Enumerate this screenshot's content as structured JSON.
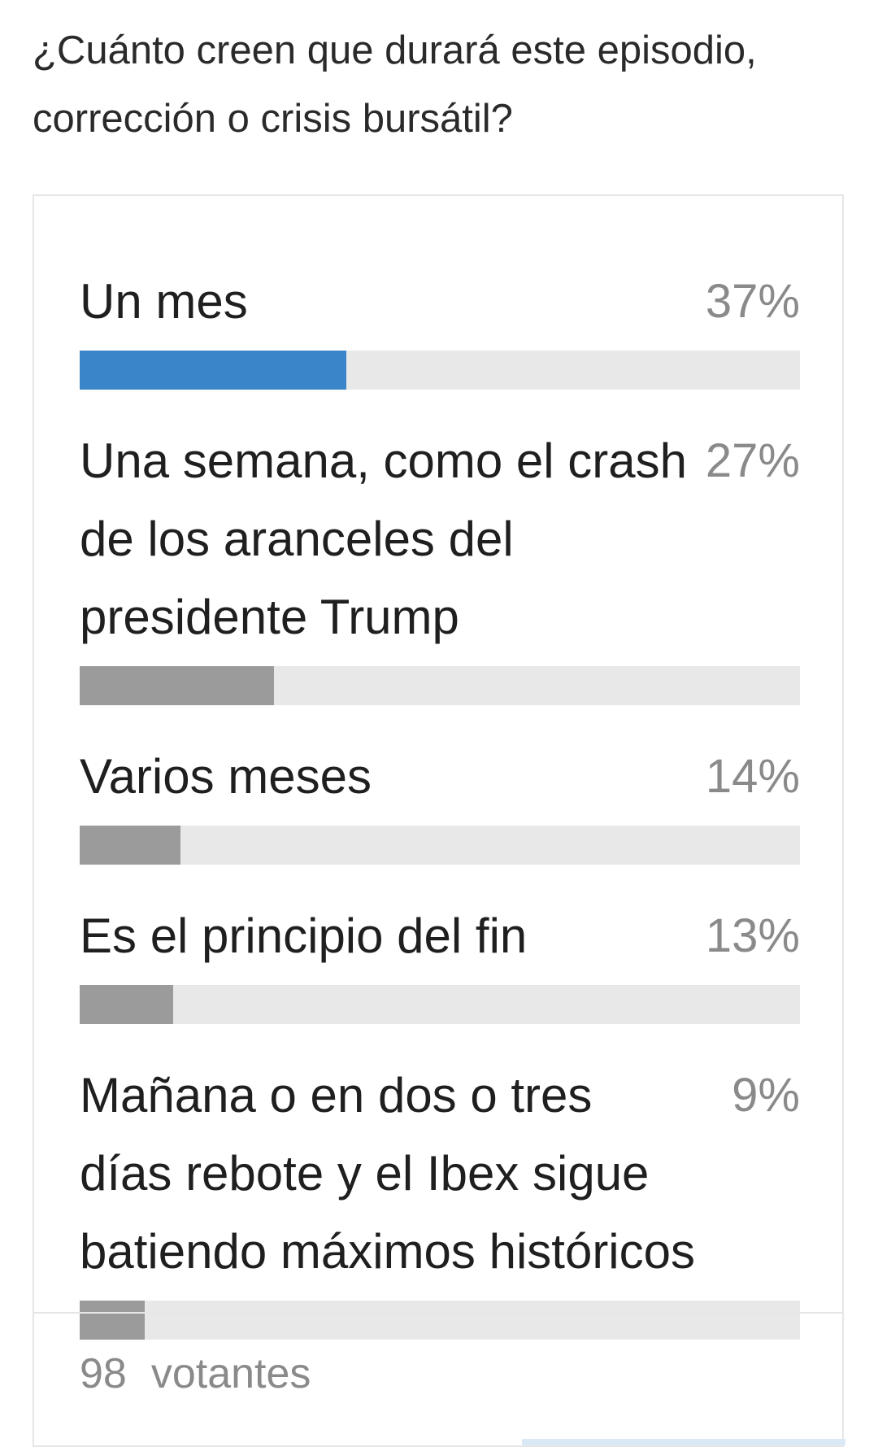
{
  "question": "¿Cuánto creen que durará este episodio, corrección o crisis bursátil?",
  "options": [
    {
      "label": "Un mes",
      "percent_text": "37%",
      "percent": 37,
      "leading": true
    },
    {
      "label": "Una semana, como el crash de los aranceles del presidente Trump",
      "percent_text": "27%",
      "percent": 27,
      "leading": false
    },
    {
      "label": "Varios meses",
      "percent_text": "14%",
      "percent": 14,
      "leading": false
    },
    {
      "label": "Es el principio del fin",
      "percent_text": "13%",
      "percent": 13,
      "leading": false
    },
    {
      "label": "Mañana o en dos o tres días rebote y el Ibex sigue batiendo máximos históricos",
      "percent_text": "9%",
      "percent": 9,
      "leading": false
    }
  ],
  "footer": {
    "voter_count": "98",
    "voter_label": "votantes"
  },
  "colors": {
    "leading_bar": "#3a85c9",
    "other_bar": "#9b9b9b",
    "track": "#e8e8e8",
    "percent_text": "#8a8a8a"
  }
}
